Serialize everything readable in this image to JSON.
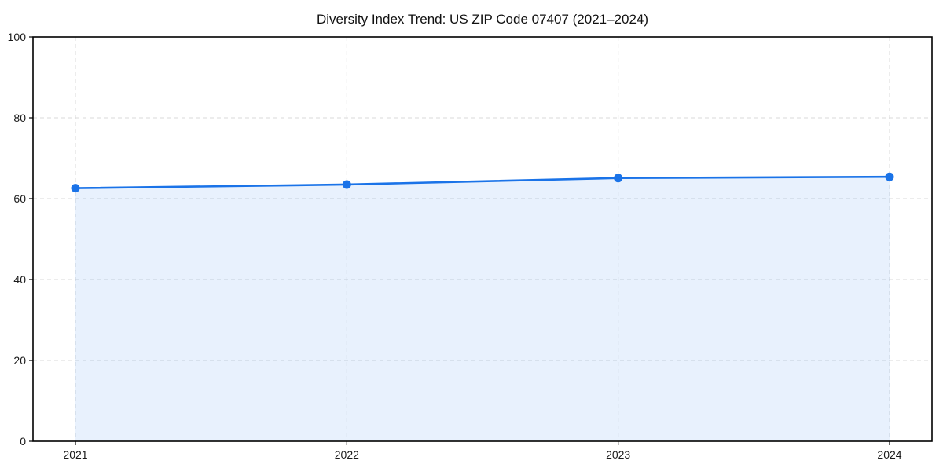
{
  "chart_data": {
    "type": "line",
    "title": "Diversity Index Trend: US ZIP Code 07407 (2021–2024)",
    "x": [
      "2021",
      "2022",
      "2023",
      "2024"
    ],
    "values": [
      62.6,
      63.5,
      65.1,
      65.4
    ],
    "xlabel": "",
    "ylabel": "",
    "ylim": [
      0,
      100
    ],
    "yticks": [
      0,
      20,
      40,
      60,
      80,
      100
    ],
    "grid": "dashed-both-axes",
    "legend": "none",
    "marker": "circle",
    "area_fill_to_zero": true,
    "area_opacity": 0.1,
    "colors": {
      "line": "#1a73e8",
      "area_tint": "#e8f1fc",
      "grid": "#d9d9d9",
      "frame": "#000000",
      "text": "#1a1a1a"
    }
  }
}
